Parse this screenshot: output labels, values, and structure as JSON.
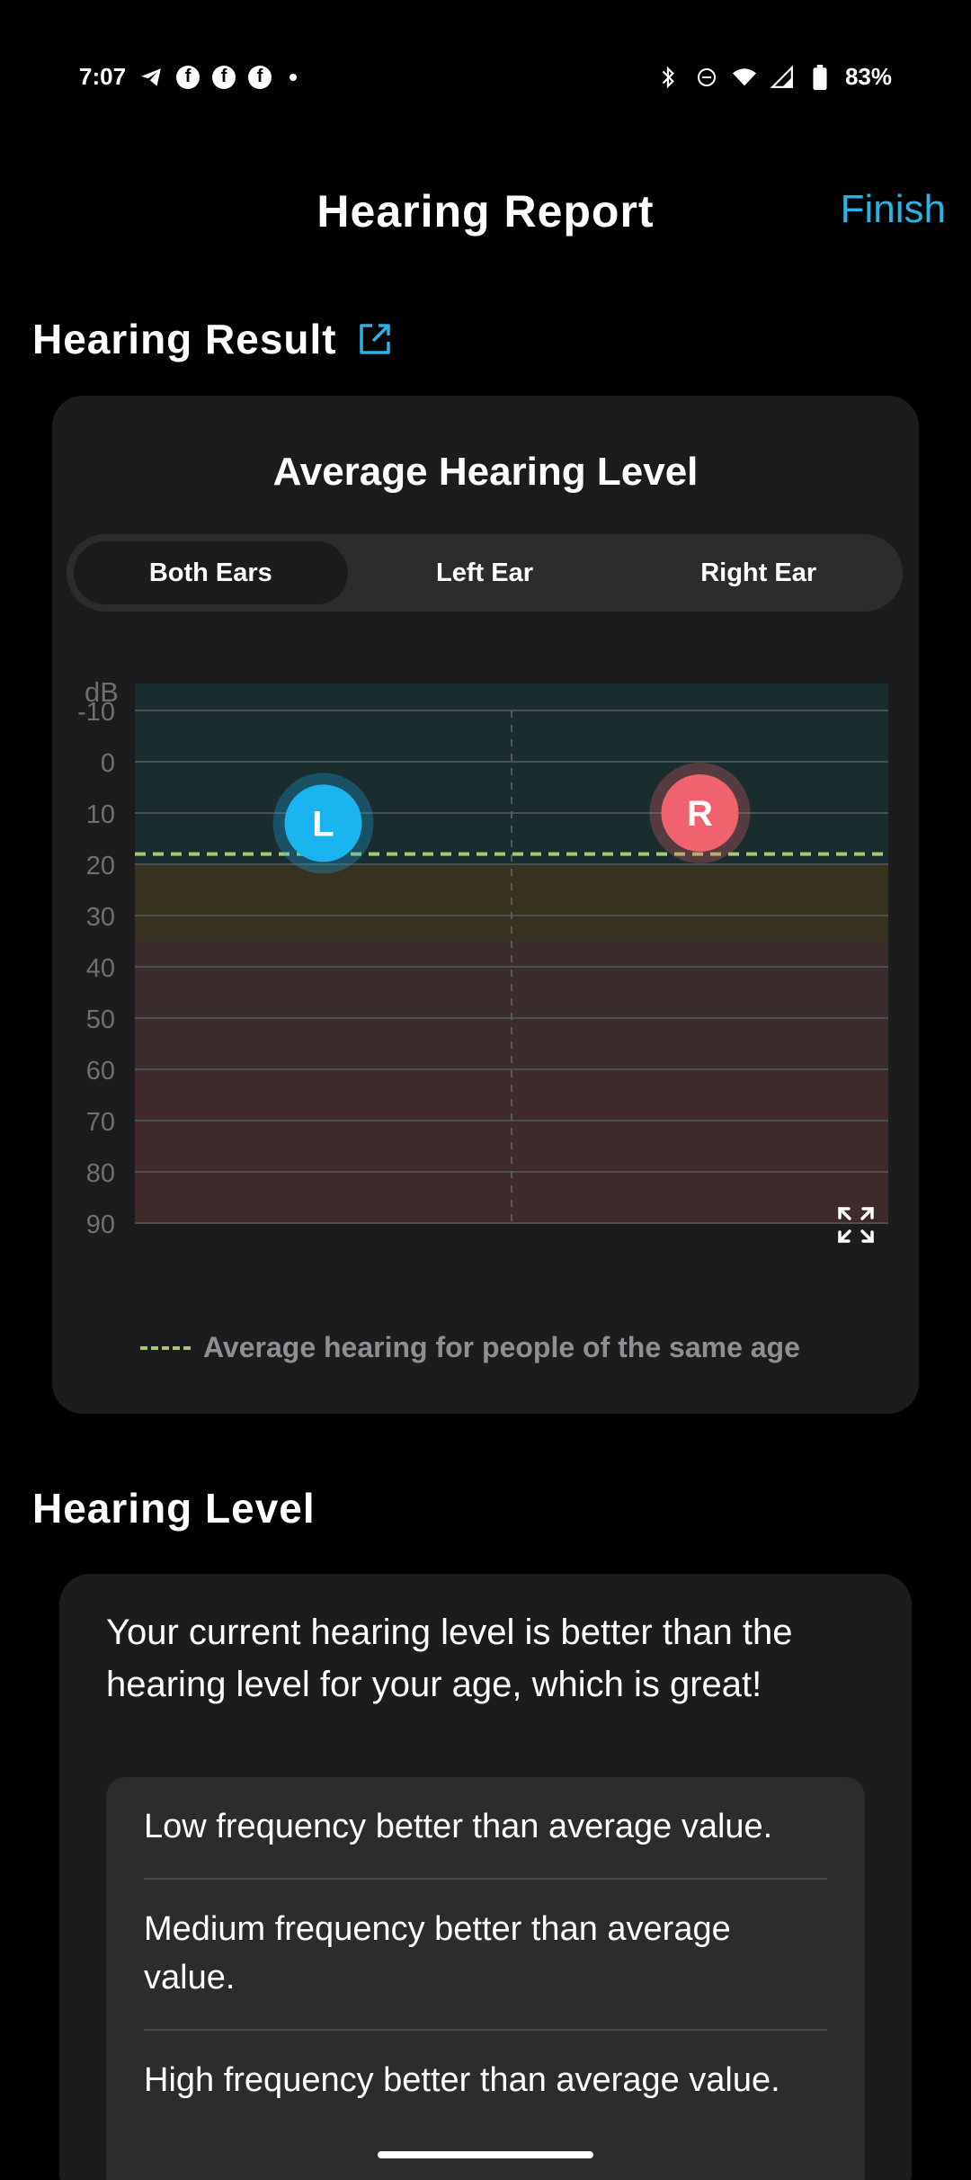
{
  "status_bar": {
    "time": "7:07",
    "battery": "83%",
    "left_icons": [
      "telegram-icon",
      "facebook-icon",
      "facebook-icon",
      "facebook-icon",
      "notification-dot-icon"
    ],
    "right_icons": [
      "bluetooth-icon",
      "do-not-disturb-icon",
      "wifi-icon",
      "signal-icon",
      "battery-icon"
    ]
  },
  "header": {
    "title": "Hearing Report",
    "finish_label": "Finish"
  },
  "hearing_result": {
    "section_title": "Hearing Result",
    "card_title": "Average Hearing Level",
    "tabs": [
      {
        "label": "Both Ears",
        "active": true
      },
      {
        "label": "Left Ear",
        "active": false
      },
      {
        "label": "Right Ear",
        "active": false
      }
    ],
    "legend_label": "Average hearing for people of the same age"
  },
  "chart_data": {
    "type": "scatter",
    "ylabel": "dB",
    "y_ticks": [
      "-10",
      "0",
      "10",
      "20",
      "30",
      "40",
      "50",
      "60",
      "70",
      "80",
      "90"
    ],
    "ylim": [
      -10,
      90
    ],
    "y_inverted": true,
    "average_line_db": 18,
    "points": [
      {
        "label": "L",
        "db": 12,
        "side": "left",
        "color": "#1ab4ef"
      },
      {
        "label": "R",
        "db": 10,
        "side": "right",
        "color": "#f0636e"
      }
    ],
    "bands": [
      {
        "from": -10,
        "to": 20,
        "color": "#1b2c2f"
      },
      {
        "from": 20,
        "to": 35,
        "color": "#37321f"
      },
      {
        "from": 35,
        "to": 60,
        "color": "#3a2c2c"
      },
      {
        "from": 60,
        "to": 90,
        "color": "#3f2a2b"
      }
    ],
    "grid": true,
    "average_line_color": "#a8c66c"
  },
  "hearing_level": {
    "section_title": "Hearing Level",
    "summary": "Your current hearing level is better than the hearing level for your age, which is great!",
    "items": [
      "Low frequency better than average value.",
      "Medium frequency better than average value.",
      "High frequency better than average value."
    ]
  }
}
